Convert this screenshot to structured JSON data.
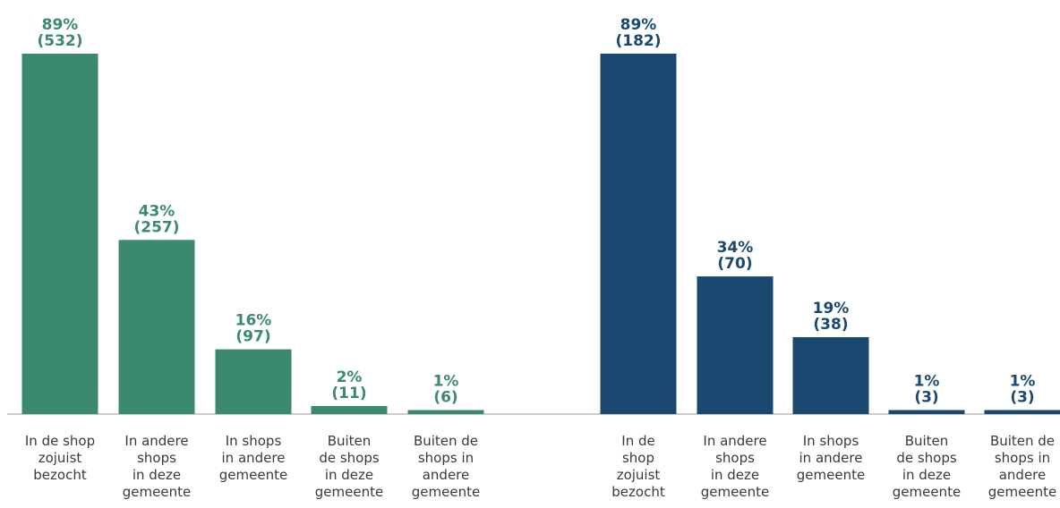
{
  "chart_data": [
    {
      "type": "bar",
      "color": "#3b8a6e",
      "categories": [
        [
          "In de shop",
          "zojuist",
          "bezocht"
        ],
        [
          "In andere",
          "shops",
          "in deze",
          "gemeente"
        ],
        [
          "In shops",
          "in andere",
          "gemeente"
        ],
        [
          "Buiten",
          "de shops",
          "in deze",
          "gemeente"
        ],
        [
          "Buiten de",
          "shops in",
          "andere",
          "gemeente"
        ]
      ],
      "values": [
        89,
        43,
        16,
        2,
        1
      ],
      "value_labels": [
        "89%",
        "43%",
        "16%",
        "2%",
        "1%"
      ],
      "count_labels": [
        "(532)",
        "(257)",
        "(97)",
        "(11)",
        "(6)"
      ],
      "ylim": [
        0,
        89
      ]
    },
    {
      "type": "bar",
      "color": "#1a4870",
      "categories": [
        [
          "In de",
          "shop",
          "zojuist",
          "bezocht"
        ],
        [
          "In andere",
          "shops",
          "in deze",
          "gemeente"
        ],
        [
          "In shops",
          "in andere",
          "gemeente"
        ],
        [
          "Buiten",
          "de shops",
          "in deze",
          "gemeente"
        ],
        [
          "Buiten de",
          "shops in",
          "andere",
          "gemeente"
        ]
      ],
      "values": [
        89,
        34,
        19,
        1,
        1
      ],
      "value_labels": [
        "89%",
        "34%",
        "19%",
        "1%",
        "1%"
      ],
      "count_labels": [
        "(182)",
        "(70)",
        "(38)",
        "(3)",
        "(3)"
      ],
      "ylim": [
        0,
        89
      ]
    }
  ]
}
